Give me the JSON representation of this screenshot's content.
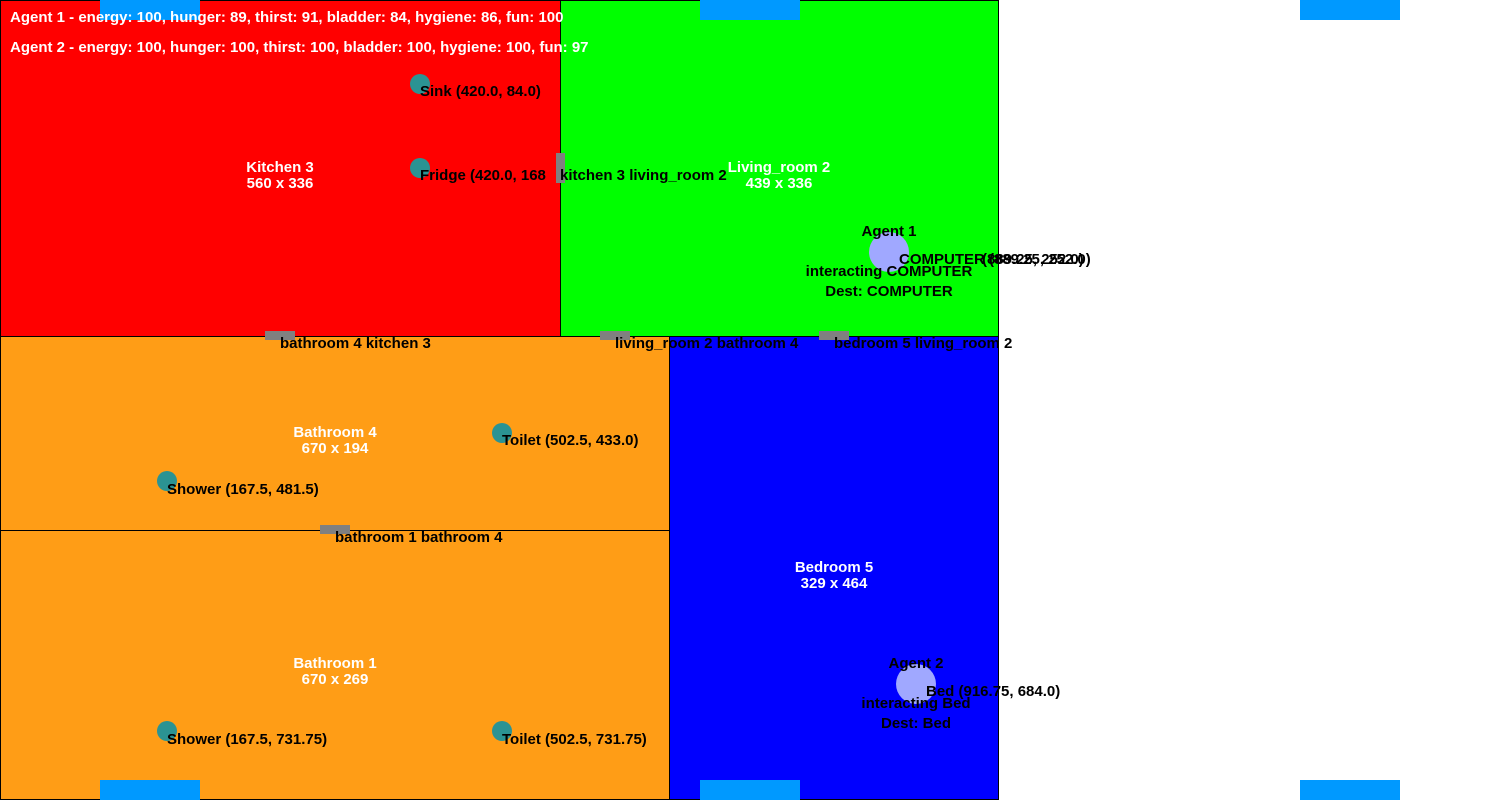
{
  "status": {
    "agent1": "Agent 1 - energy: 100, hunger: 89, thirst: 91, bladder: 84, hygiene: 86, fun: 100",
    "agent2": "Agent 2 - energy: 100, hunger: 100, thirst: 100, bladder: 100, hygiene: 100, fun: 97"
  },
  "colors": {
    "kitchen": "#ff0000",
    "living_room": "#00ff00",
    "bathroom": "#ff9d16",
    "bedroom": "#0000ff",
    "door": "#808080",
    "window": "#0099ff",
    "object": "#2b9393",
    "agent": "#a0a8ff"
  },
  "rooms": {
    "kitchen3": {
      "name": "Kitchen 3",
      "size": "560 x 336"
    },
    "living_room2": {
      "name": "Living_room 2",
      "size": "439 x 336"
    },
    "bathroom4": {
      "name": "Bathroom 4",
      "size": "670 x 194"
    },
    "bathroom1": {
      "name": "Bathroom 1",
      "size": "670 x 269"
    },
    "bedroom5": {
      "name": "Bedroom 5",
      "size": "329 x 464"
    }
  },
  "doors": {
    "kitchen_living": "kitchen 3 living_room 2",
    "bathroom4_kitchen": "bathroom 4 kitchen 3",
    "living_bathroom4": "living_room 2 bathroom 4",
    "bedroom_living": "bedroom 5 living_room 2",
    "bathroom1_bathroom4": "bathroom 1 bathroom 4"
  },
  "objects": {
    "sink": "Sink (420.0, 84.0)",
    "fridge": "Fridge (420.0, 168",
    "toilet4": "Toilet (502.5, 433.0)",
    "shower4": "Shower (167.5, 481.5)",
    "shower1": "Shower (167.5, 731.75)",
    "toilet1": "Toilet (502.5, 731.75)",
    "computer": "COMPUTER (889.25, 252.0)",
    "computer_overlap": "(889.25, 252.0)",
    "bed": "Bed (916.75, 684.0)"
  },
  "agents": {
    "agent1": {
      "name": "Agent 1",
      "action": "interacting COMPUTER",
      "dest": "Dest: COMPUTER"
    },
    "agent2": {
      "name": "Agent 2",
      "action": "interacting Bed",
      "dest": "Dest: Bed"
    }
  }
}
